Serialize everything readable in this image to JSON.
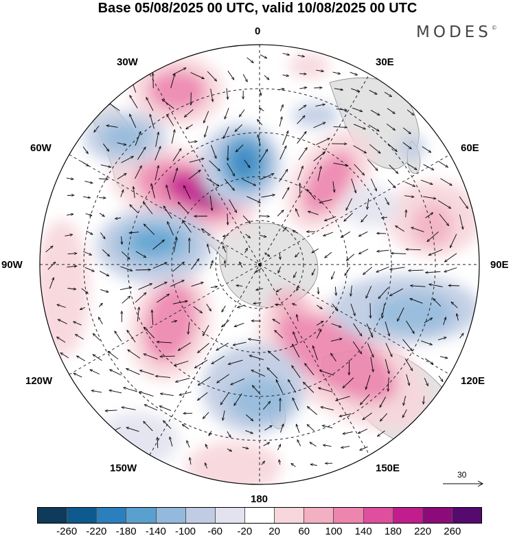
{
  "title": "Base 05/08/2025 00 UTC, valid 10/08/2025 00 UTC",
  "logo": {
    "text": "MODES",
    "mark": "©"
  },
  "longitude_labels": {
    "lon_0": "0",
    "lon_30e": "30E",
    "lon_60e": "60E",
    "lon_90e": "90E",
    "lon_120e": "120E",
    "lon_150e": "150E",
    "lon_180": "180",
    "lon_150w": "150W",
    "lon_120w": "120W",
    "lon_90w": "90W",
    "lon_60w": "60W",
    "lon_30w": "30W"
  },
  "vector_scale": {
    "label": "30"
  },
  "colorbar": {
    "colors": [
      "#0f3a59",
      "#0e5a8e",
      "#2b7fbd",
      "#5aa0cf",
      "#93b9dc",
      "#c0cce3",
      "#e2e3ef",
      "#ffffff",
      "#f7d6dc",
      "#f2b0c2",
      "#ed85ae",
      "#e04e9e",
      "#c21d8c",
      "#8c0a7a",
      "#56096e"
    ],
    "ticks": [
      "-260",
      "-220",
      "-180",
      "-140",
      "-100",
      "-60",
      "-20",
      "20",
      "60",
      "100",
      "140",
      "180",
      "220",
      "260"
    ]
  },
  "colors": {
    "land": "#e3e3e3",
    "coast": "#888888",
    "grid": "#222222"
  }
}
